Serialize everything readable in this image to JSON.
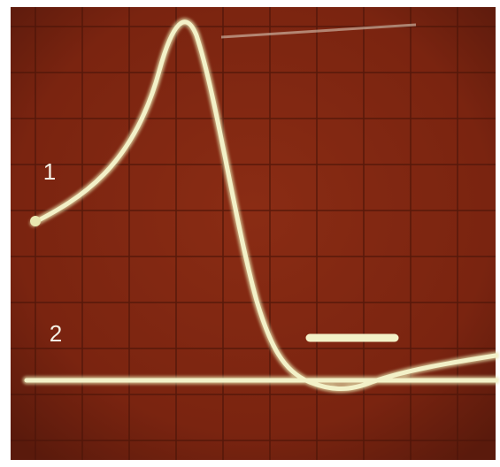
{
  "labels": {
    "trace_1": "1",
    "trace_2": "2"
  }
}
